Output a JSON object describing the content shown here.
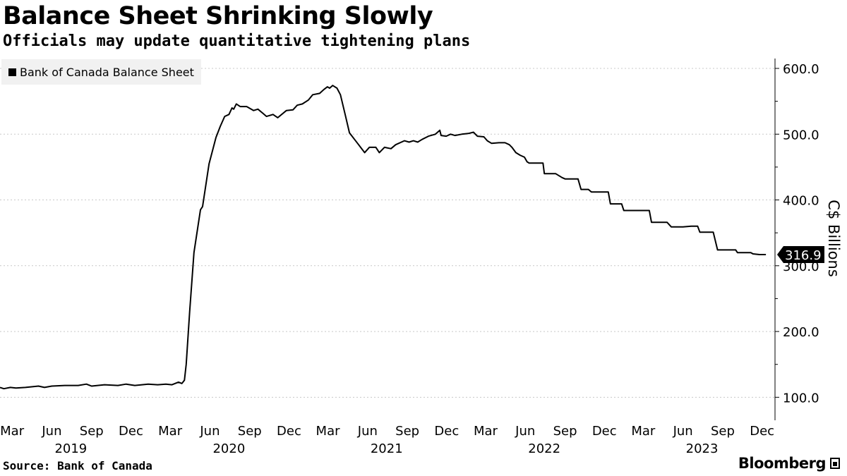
{
  "header": {
    "title": "Balance Sheet Shrinking Slowly",
    "subtitle": "Officials may update quantitative tightening plans"
  },
  "footer": {
    "source": "Source: Bank of Canada",
    "brand": "Bloomberg"
  },
  "colors": {
    "line": "#000000",
    "grid": "#c8c8c8",
    "legend_bg": "#f1f1f1",
    "background": "#ffffff"
  },
  "chart_data": {
    "type": "line",
    "title": "Balance Sheet Shrinking Slowly",
    "subtitle": "Officials may update quantitative tightening plans",
    "ylabel": "C$ Billions",
    "y_axis_position": "right",
    "ylim": [
      65,
      615
    ],
    "y_ticks": [
      100,
      200,
      300,
      400,
      500,
      600
    ],
    "y_tick_labels": [
      "100.0",
      "200.0",
      "300.0",
      "400.0",
      "500.0",
      "600.0"
    ],
    "grid": "horizontal dotted",
    "xlim": [
      "2019-02-01",
      "2023-12-31"
    ],
    "x_ticks": [
      {
        "date": "2019-03-01",
        "label": "Mar"
      },
      {
        "date": "2019-06-01",
        "label": "Jun"
      },
      {
        "date": "2019-09-01",
        "label": "Sep"
      },
      {
        "date": "2019-12-01",
        "label": "Dec"
      },
      {
        "date": "2020-03-01",
        "label": "Mar"
      },
      {
        "date": "2020-06-01",
        "label": "Jun"
      },
      {
        "date": "2020-09-01",
        "label": "Sep"
      },
      {
        "date": "2020-12-01",
        "label": "Dec"
      },
      {
        "date": "2021-03-01",
        "label": "Mar"
      },
      {
        "date": "2021-06-01",
        "label": "Jun"
      },
      {
        "date": "2021-09-01",
        "label": "Sep"
      },
      {
        "date": "2021-12-01",
        "label": "Dec"
      },
      {
        "date": "2022-03-01",
        "label": "Mar"
      },
      {
        "date": "2022-06-01",
        "label": "Jun"
      },
      {
        "date": "2022-09-01",
        "label": "Sep"
      },
      {
        "date": "2022-12-01",
        "label": "Dec"
      },
      {
        "date": "2023-03-01",
        "label": "Mar"
      },
      {
        "date": "2023-06-01",
        "label": "Jun"
      },
      {
        "date": "2023-09-01",
        "label": "Sep"
      },
      {
        "date": "2023-12-01",
        "label": "Dec"
      }
    ],
    "year_labels": [
      {
        "date": "2019-07-15",
        "label": "2019"
      },
      {
        "date": "2020-07-15",
        "label": "2020"
      },
      {
        "date": "2021-07-15",
        "label": "2021"
      },
      {
        "date": "2022-07-15",
        "label": "2022"
      },
      {
        "date": "2023-07-15",
        "label": "2023"
      }
    ],
    "legend": {
      "position": "top-left",
      "entries": [
        "Bank of Canada Balance Sheet"
      ]
    },
    "last_value_label": {
      "value": 316.9,
      "text": "316.9"
    },
    "series": [
      {
        "name": "Bank of Canada Balance Sheet",
        "points": [
          [
            "2019-02-01",
            115
          ],
          [
            "2019-02-10",
            113
          ],
          [
            "2019-02-25",
            115
          ],
          [
            "2019-03-10",
            114
          ],
          [
            "2019-04-01",
            115
          ],
          [
            "2019-05-01",
            117
          ],
          [
            "2019-05-15",
            115
          ],
          [
            "2019-06-01",
            117
          ],
          [
            "2019-07-01",
            118
          ],
          [
            "2019-08-01",
            118
          ],
          [
            "2019-08-20",
            120
          ],
          [
            "2019-09-01",
            117
          ],
          [
            "2019-10-01",
            119
          ],
          [
            "2019-11-01",
            118
          ],
          [
            "2019-11-20",
            120
          ],
          [
            "2019-12-10",
            118
          ],
          [
            "2020-01-10",
            120
          ],
          [
            "2020-02-01",
            119
          ],
          [
            "2020-02-20",
            120
          ],
          [
            "2020-03-05",
            119
          ],
          [
            "2020-03-20",
            123
          ],
          [
            "2020-03-28",
            121
          ],
          [
            "2020-04-03",
            126
          ],
          [
            "2020-04-07",
            150
          ],
          [
            "2020-04-15",
            230
          ],
          [
            "2020-04-25",
            320
          ],
          [
            "2020-05-10",
            385
          ],
          [
            "2020-05-15",
            390
          ],
          [
            "2020-05-30",
            455
          ],
          [
            "2020-06-15",
            495
          ],
          [
            "2020-06-25",
            512
          ],
          [
            "2020-07-05",
            527
          ],
          [
            "2020-07-15",
            530
          ],
          [
            "2020-07-22",
            540
          ],
          [
            "2020-07-26",
            538
          ],
          [
            "2020-08-01",
            546
          ],
          [
            "2020-08-10",
            542
          ],
          [
            "2020-08-25",
            542
          ],
          [
            "2020-09-10",
            536
          ],
          [
            "2020-09-20",
            538
          ],
          [
            "2020-10-01",
            532
          ],
          [
            "2020-10-10",
            527
          ],
          [
            "2020-10-25",
            530
          ],
          [
            "2020-11-05",
            525
          ],
          [
            "2020-11-25",
            536
          ],
          [
            "2020-12-10",
            537
          ],
          [
            "2020-12-20",
            544
          ],
          [
            "2021-01-01",
            546
          ],
          [
            "2021-01-15",
            552
          ],
          [
            "2021-01-25",
            560
          ],
          [
            "2021-02-10",
            562
          ],
          [
            "2021-02-20",
            568
          ],
          [
            "2021-02-28",
            572
          ],
          [
            "2021-03-05",
            570
          ],
          [
            "2021-03-12",
            574
          ],
          [
            "2021-03-22",
            570
          ],
          [
            "2021-03-30",
            560
          ],
          [
            "2021-04-10",
            530
          ],
          [
            "2021-04-20",
            502
          ],
          [
            "2021-05-10",
            485
          ],
          [
            "2021-05-25",
            472
          ],
          [
            "2021-06-05",
            480
          ],
          [
            "2021-06-20",
            480
          ],
          [
            "2021-06-28",
            472
          ],
          [
            "2021-07-10",
            480
          ],
          [
            "2021-07-25",
            478
          ],
          [
            "2021-08-05",
            484
          ],
          [
            "2021-08-25",
            490
          ],
          [
            "2021-09-05",
            488
          ],
          [
            "2021-09-15",
            490
          ],
          [
            "2021-09-25",
            488
          ],
          [
            "2021-10-05",
            492
          ],
          [
            "2021-10-20",
            497
          ],
          [
            "2021-11-05",
            500
          ],
          [
            "2021-11-15",
            506
          ],
          [
            "2021-11-18",
            498
          ],
          [
            "2021-11-30",
            497
          ],
          [
            "2021-12-10",
            500
          ],
          [
            "2021-12-20",
            498
          ],
          [
            "2022-01-05",
            500
          ],
          [
            "2022-01-20",
            501
          ],
          [
            "2022-02-01",
            503
          ],
          [
            "2022-02-10",
            497
          ],
          [
            "2022-02-25",
            496
          ],
          [
            "2022-03-05",
            490
          ],
          [
            "2022-03-15",
            486
          ],
          [
            "2022-04-01",
            487
          ],
          [
            "2022-04-15",
            487
          ],
          [
            "2022-04-25",
            484
          ],
          [
            "2022-05-01",
            480
          ],
          [
            "2022-05-10",
            472
          ],
          [
            "2022-05-20",
            468
          ],
          [
            "2022-05-30",
            465
          ],
          [
            "2022-06-05",
            458
          ],
          [
            "2022-06-10",
            456
          ],
          [
            "2022-07-12",
            456
          ],
          [
            "2022-07-15",
            440
          ],
          [
            "2022-08-10",
            440
          ],
          [
            "2022-08-25",
            434
          ],
          [
            "2022-09-01",
            432
          ],
          [
            "2022-10-01",
            432
          ],
          [
            "2022-10-08",
            416
          ],
          [
            "2022-10-25",
            416
          ],
          [
            "2022-11-01",
            412
          ],
          [
            "2022-12-10",
            412
          ],
          [
            "2022-12-15",
            394
          ],
          [
            "2023-01-10",
            394
          ],
          [
            "2023-01-15",
            384
          ],
          [
            "2023-02-10",
            384
          ],
          [
            "2023-03-15",
            384
          ],
          [
            "2023-03-20",
            366
          ],
          [
            "2023-04-25",
            366
          ],
          [
            "2023-05-05",
            359
          ],
          [
            "2023-06-01",
            359
          ],
          [
            "2023-06-20",
            360
          ],
          [
            "2023-07-05",
            360
          ],
          [
            "2023-07-10",
            351
          ],
          [
            "2023-08-10",
            351
          ],
          [
            "2023-08-20",
            324
          ],
          [
            "2023-10-01",
            324
          ],
          [
            "2023-10-05",
            320
          ],
          [
            "2023-11-05",
            320
          ],
          [
            "2023-11-10",
            318
          ],
          [
            "2023-11-25",
            317
          ],
          [
            "2023-12-10",
            316.9
          ]
        ]
      }
    ]
  }
}
